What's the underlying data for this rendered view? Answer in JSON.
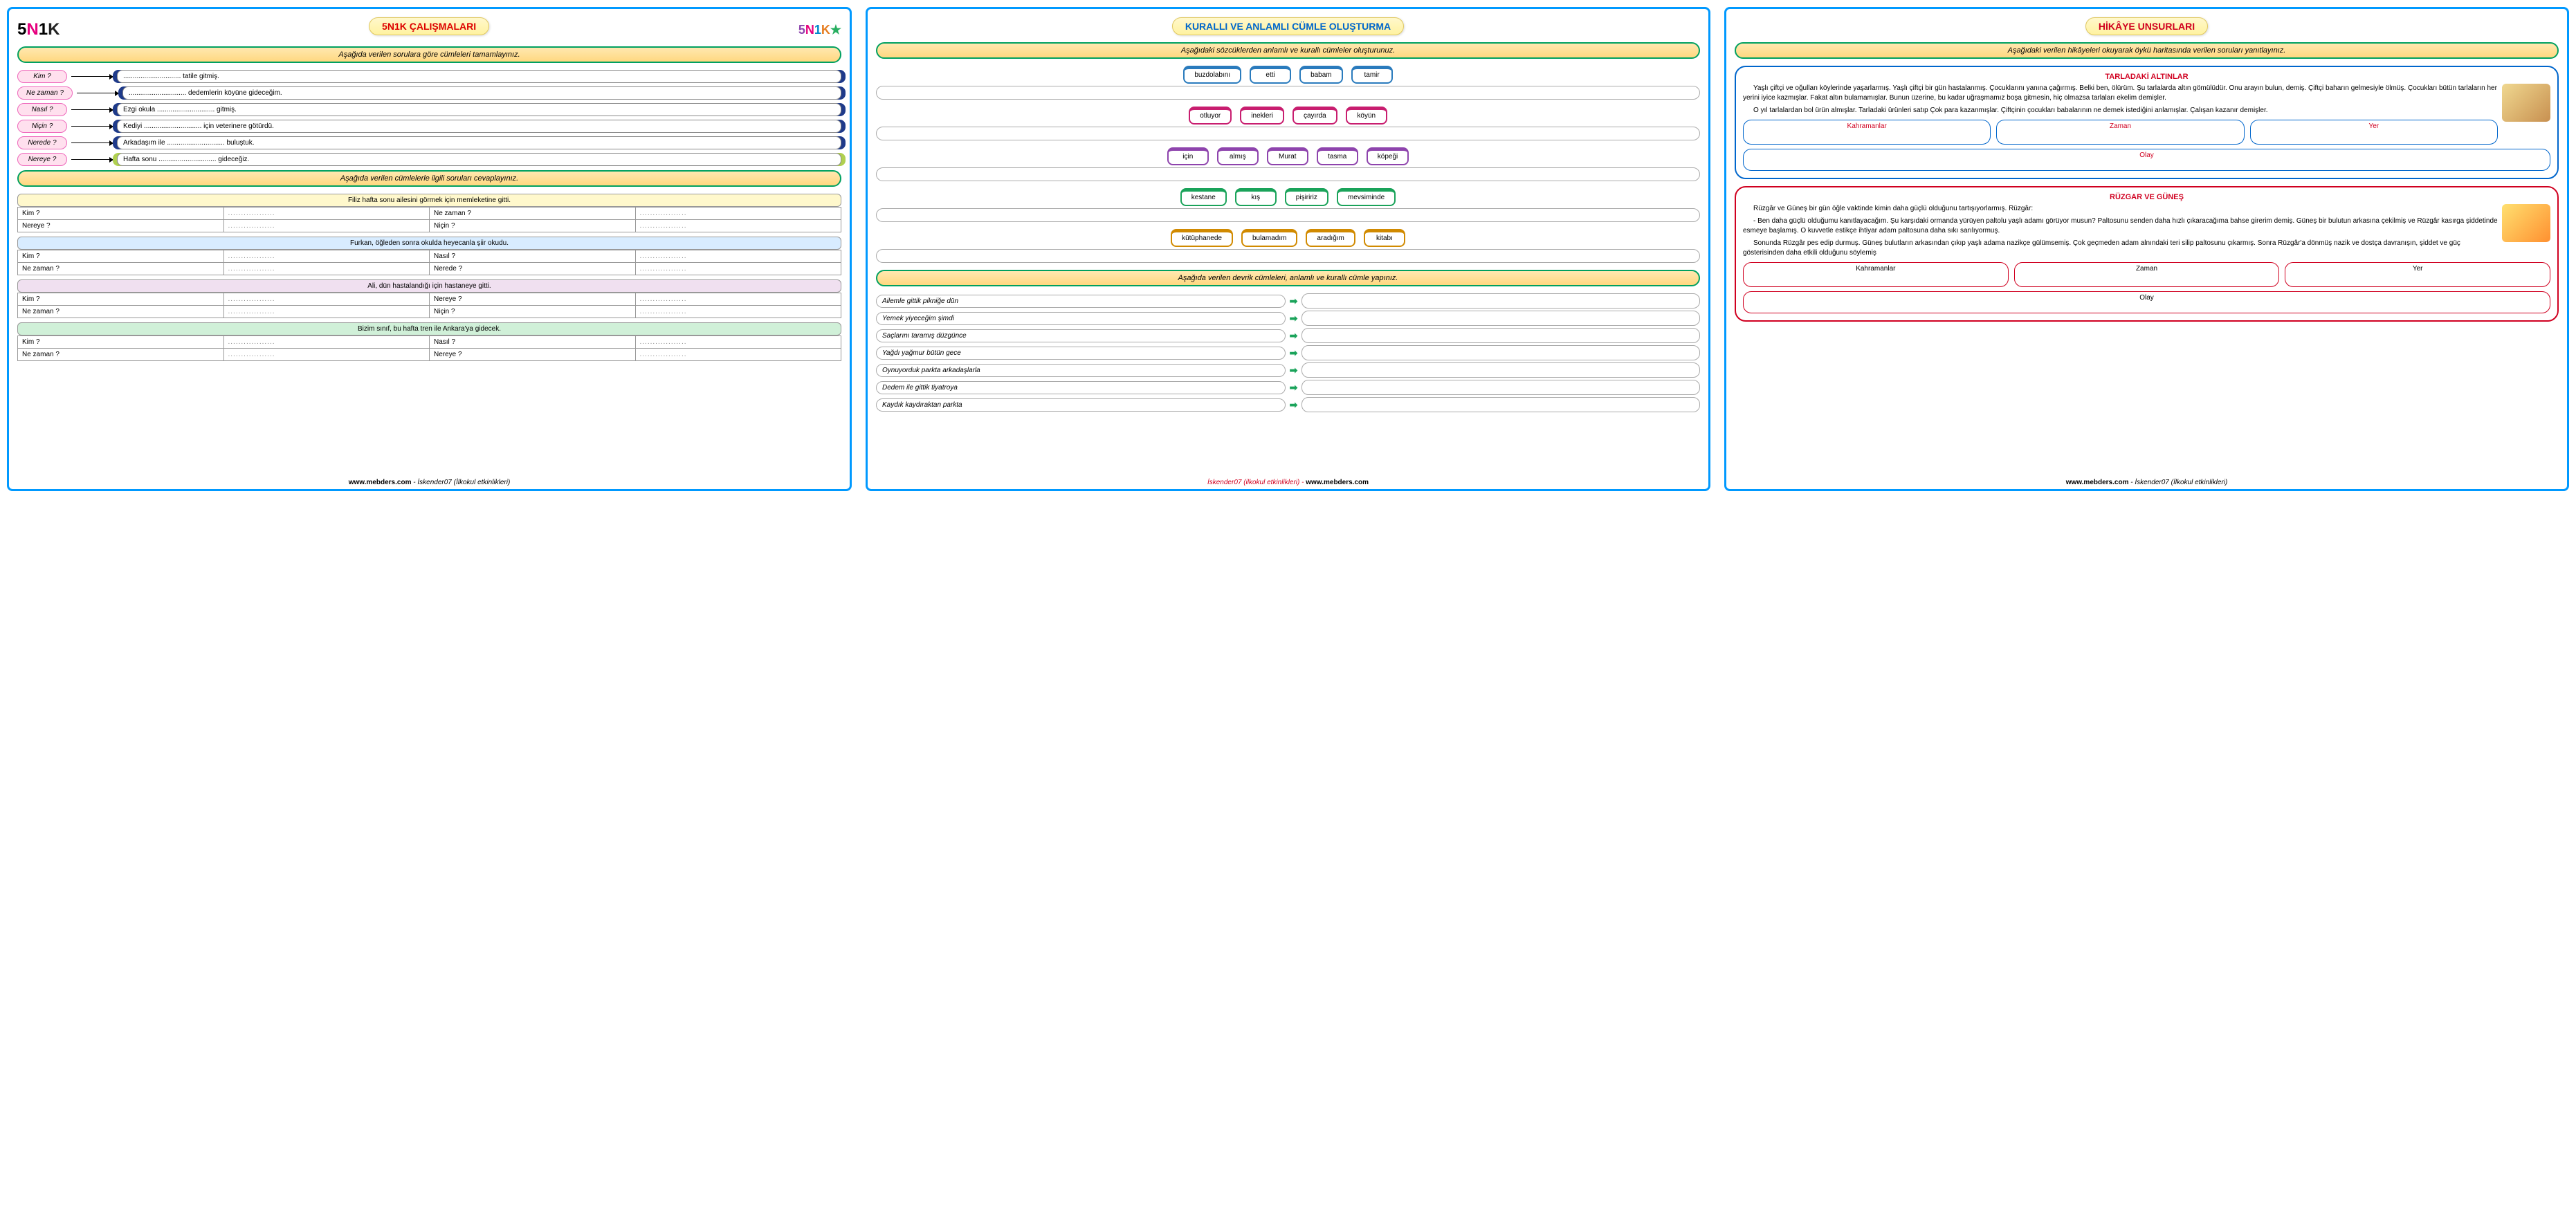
{
  "page1": {
    "title": "5N1K ÇALIŞMALARI",
    "instr1": "Aşağıda verilen sorulara göre cümleleri tamamlayınız.",
    "questions": [
      {
        "q": "Kim ?",
        "a": ".............................. tatile gitmiş."
      },
      {
        "q": "Ne zaman ?",
        "a": ".............................. dedemlerin köyüne gideceğim."
      },
      {
        "q": "Nasıl ?",
        "a": "Ezgi okula .............................. gitmiş."
      },
      {
        "q": "Niçin ?",
        "a": "Kediyi .............................. için veterinere götürdü."
      },
      {
        "q": "Nerede ?",
        "a": "Arkadaşım ile .............................. buluştuk."
      },
      {
        "q": "Nereye ?",
        "a": "Hafta sonu .............................. gideceğiz."
      }
    ],
    "instr2": "Aşağıda verilen cümlelerle ilgili soruları cevaplayınız.",
    "tables": [
      {
        "cls": "y",
        "sent": "Filiz hafta sonu ailesini görmek için memleketine gitti.",
        "rows": [
          [
            "Kim ?",
            "Ne zaman ?"
          ],
          [
            "Nereye ?",
            "Niçin ?"
          ]
        ]
      },
      {
        "cls": "b",
        "sent": "Furkan, öğleden sonra okulda heyecanla şiir okudu.",
        "rows": [
          [
            "Kim ?",
            "Nasıl ?"
          ],
          [
            "Ne zaman ?",
            "Nerede ?"
          ]
        ]
      },
      {
        "cls": "p",
        "sent": "Ali, dün hastalandığı için hastaneye gitti.",
        "rows": [
          [
            "Kim ?",
            "Nereye ?"
          ],
          [
            "Ne zaman ?",
            "Niçin ?"
          ]
        ]
      },
      {
        "cls": "g",
        "sent": "Bizim sınıf, bu hafta tren ile Ankara'ya gidecek.",
        "rows": [
          [
            "Kim ?",
            "Nasıl ?"
          ],
          [
            "Ne zaman ?",
            "Nereye ?"
          ]
        ]
      }
    ],
    "footer_site": "www.mebders.com",
    "footer_auth": " - İskender07 (İlkokul etkinlikleri)"
  },
  "page2": {
    "title": "KURALLI VE ANLAMLI CÜMLE OLUŞTURMA",
    "instr1": "Aşağıdaki sözcüklerden anlamlı ve kurallı cümleler oluşturunuz.",
    "wordrows": [
      [
        "buzdolabını",
        "etti",
        "babam",
        "tamir"
      ],
      [
        "otluyor",
        "inekleri",
        "çayırda",
        "köyün"
      ],
      [
        "için",
        "almış",
        "Murat",
        "tasma",
        "köpeği"
      ],
      [
        "kestane",
        "kış",
        "pişiririz",
        "mevsiminde"
      ],
      [
        "kütüphanede",
        "bulamadım",
        "aradığım",
        "kitabı"
      ]
    ],
    "instr2": "Aşağıda verilen devrik cümleleri, anlamlı ve kurallı cümle yapınız.",
    "devrik": [
      "Ailemle gittik pikniğe dün",
      "Yemek yiyeceğim şimdi",
      "Saçlarını taramış düzgünce",
      "Yağdı yağmur bütün gece",
      "Oynuyorduk parkta arkadaşlarla",
      "Dedem ile gittik tiyatroya",
      "Kaydık kaydıraktan parkta"
    ],
    "footer_auth": "İskender07 (ilkokul etkinlikleri) - ",
    "footer_site": "www.mebders.com"
  },
  "page3": {
    "title": "HİKÂYE UNSURLARI",
    "instr": "Aşağıdaki verilen hikâyeleri okuyarak öykü haritasında verilen soruları yanıtlayınız.",
    "story1": {
      "title": "TARLADAKİ ALTINLAR",
      "p1": "Yaşlı çiftçi ve oğulları köylerinde yaşarlarmış. Yaşlı çiftçi bir gün hastalanmış. Çocuklarını yanına çağırmış. Belki ben, ölürüm. Şu tarlalarda altın gömülüdür. Onu arayın bulun, demiş. Çiftçi baharın gelmesiyle ölmüş. Çocukları bütün tarlaların her yerini iyice kazmışlar. Fakat altın bulamamışlar. Bunun üzerine, bu kadar uğraşmamız boşa gitmesin, hiç olmazsa tarlaları ekelim demişler.",
      "p2": "O yıl tarlalardan bol ürün almışlar. Tarladaki ürünleri satıp Çok para kazanmışlar. Çiftçinin çocukları babalarının ne demek istediğini anlamışlar. Çalışan kazanır demişler.",
      "labels": [
        "Kahramanlar",
        "Zaman",
        "Yer"
      ],
      "olay": "Olay"
    },
    "story2": {
      "title": "RÜZGAR VE GÜNEŞ",
      "p1": "Rüzgâr ve Güneş bir gün öğle vaktinde kimin daha güçlü olduğunu tartışıyorlarmış. Rüzgâr:",
      "p2": "- Ben daha güçlü olduğumu kanıtlayacağım. Şu karşıdaki ormanda yürüyen paltolu yaşlı adamı görüyor musun? Paltosunu senden daha hızlı çıkaracağıma bahse girerim demiş.   Güneş bir bulutun arkasına çekilmiş ve Rüzgâr kasırga şiddetinde esmeye başlamış. O kuvvetle estikçe ihtiyar adam paltosuna daha sıkı sarılıyormuş.",
      "p3": "Sonunda Rüzgâr pes edip durmuş. Güneş bulutların arkasından çıkıp yaşlı adama nazikçe gülümsemiş. Çok geçmeden adam alnındaki teri silip paltosunu çıkarmış. Sonra Rüzgâr'a dönmüş nazik ve dostça davranışın, şiddet ve güç gösterisinden daha etkili olduğunu söylemiş",
      "labels": [
        "Kahramanlar",
        "Zaman",
        "Yer"
      ],
      "olay": "Olay"
    },
    "footer_site": "www.mebders.com",
    "footer_auth": " - İskender07 (İlkokul etkinlikleri)"
  }
}
